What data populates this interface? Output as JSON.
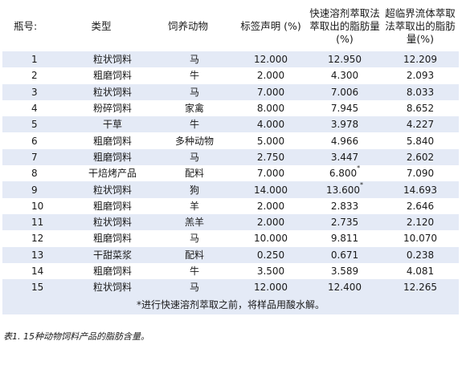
{
  "table": {
    "headers": {
      "id": "瓶号:",
      "type": "类型",
      "animal": "饲养动物",
      "label": "标签声明 (%)",
      "fast": "快速溶剂萃取法萃取出的脂肪量(%)",
      "sfe": "超临界流体萃取法萃取出的脂肪量(%)"
    },
    "rows": [
      {
        "id": "1",
        "type": "粒状饲料",
        "animal": "马",
        "label": "12.000",
        "fast": "12.950",
        "fast_note": "",
        "sfe": "12.209"
      },
      {
        "id": "2",
        "type": "粗磨饲料",
        "animal": "牛",
        "label": "2.000",
        "fast": "4.300",
        "fast_note": "",
        "sfe": "2.093"
      },
      {
        "id": "3",
        "type": "粒状饲料",
        "animal": "马",
        "label": "7.000",
        "fast": "7.006",
        "fast_note": "",
        "sfe": "8.033"
      },
      {
        "id": "4",
        "type": "粉碎饲料",
        "animal": "家禽",
        "label": "8.000",
        "fast": "7.945",
        "fast_note": "",
        "sfe": "8.652"
      },
      {
        "id": "5",
        "type": "干草",
        "animal": "牛",
        "label": "4.000",
        "fast": "3.978",
        "fast_note": "",
        "sfe": "4.227"
      },
      {
        "id": "6",
        "type": "粗磨饲料",
        "animal": "多种动物",
        "label": "5.000",
        "fast": "4.966",
        "fast_note": "",
        "sfe": "5.840"
      },
      {
        "id": "7",
        "type": "粗磨饲料",
        "animal": "马",
        "label": "2.750",
        "fast": "3.447",
        "fast_note": "",
        "sfe": "2.602"
      },
      {
        "id": "8",
        "type": "干焙烤产品",
        "animal": "配料",
        "label": "7.000",
        "fast": "6.800",
        "fast_note": "*",
        "sfe": "7.090"
      },
      {
        "id": "9",
        "type": "粒状饲料",
        "animal": "狗",
        "label": "14.000",
        "fast": "13.600",
        "fast_note": "*",
        "sfe": "14.693"
      },
      {
        "id": "10",
        "type": "粗磨饲料",
        "animal": "羊",
        "label": "2.000",
        "fast": "2.833",
        "fast_note": "",
        "sfe": "2.646"
      },
      {
        "id": "11",
        "type": "粒状饲料",
        "animal": "羔羊",
        "label": "2.000",
        "fast": "2.735",
        "fast_note": "",
        "sfe": "2.120"
      },
      {
        "id": "12",
        "type": "粗磨饲料",
        "animal": "马",
        "label": "10.000",
        "fast": "9.811",
        "fast_note": "",
        "sfe": "10.070"
      },
      {
        "id": "13",
        "type": "干甜菜浆",
        "animal": "配料",
        "label": "0.250",
        "fast": "0.671",
        "fast_note": "",
        "sfe": "0.238"
      },
      {
        "id": "14",
        "type": "粗磨饲料",
        "animal": "牛",
        "label": "3.500",
        "fast": "3.589",
        "fast_note": "",
        "sfe": "4.081"
      },
      {
        "id": "15",
        "type": "粒状饲料",
        "animal": "马",
        "label": "12.000",
        "fast": "12.400",
        "fast_note": "",
        "sfe": "12.265"
      }
    ],
    "footnote": "*进行快速溶剂萃取之前，将样品用酸水解。"
  },
  "caption": "表1. 15种动物饲料产品的脂肪含量。"
}
